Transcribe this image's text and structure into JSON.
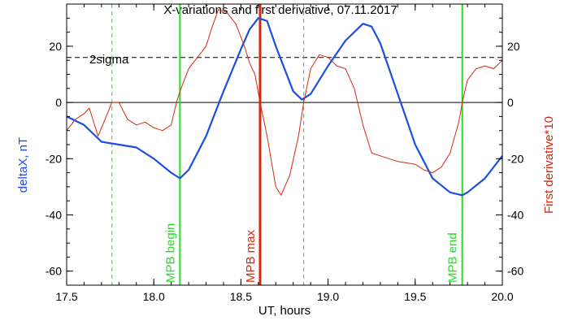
{
  "chart_data": {
    "type": "line",
    "title": "X-variations and first derivative, 07.11.2017",
    "xlabel": "UT, hours",
    "ylabel_left": "deltaX, nT",
    "ylabel_right": "First derivative*10",
    "xlim": [
      17.5,
      20.0
    ],
    "ylim": [
      -65,
      35
    ],
    "x_ticks": [
      "17.5",
      "18.0",
      "18.5",
      "19.0",
      "19.5",
      "20.0"
    ],
    "x_tick_values": [
      17.5,
      18.0,
      18.5,
      19.0,
      19.5,
      20.0
    ],
    "y_ticks": [
      "20",
      "0",
      "-20",
      "-40",
      "-60"
    ],
    "y_tick_values": [
      20,
      0,
      -20,
      -40,
      -60
    ],
    "grid": false,
    "colors": {
      "deltaX": "#1c4fe0",
      "derivative": "#d42a10",
      "mpb": "#22dd22",
      "mpb_max": "#d42a10",
      "reference": "#000000"
    },
    "sigma_label": "2sigma",
    "sigma_level": 16,
    "zero_level": 0,
    "vertical_lines": [
      {
        "label": "",
        "x": 17.76,
        "style": "dashed",
        "color": "#22dd22"
      },
      {
        "label": "MPB begin",
        "x": 18.15,
        "style": "solid",
        "color": "#22dd22"
      },
      {
        "label": "MPB max",
        "x": 18.61,
        "style": "solid",
        "color": "#d42a10"
      },
      {
        "label": "",
        "x": 18.86,
        "style": "dashed",
        "color": "#22dd22"
      },
      {
        "label": "MPB end",
        "x": 19.77,
        "style": "solid",
        "color": "#22dd22"
      }
    ],
    "series": [
      {
        "key": "deltaX",
        "axis": "left",
        "x": [
          17.5,
          17.6,
          17.7,
          17.8,
          17.9,
          18.0,
          18.1,
          18.15,
          18.2,
          18.3,
          18.4,
          18.5,
          18.55,
          18.6,
          18.65,
          18.7,
          18.8,
          18.85,
          18.9,
          19.0,
          19.1,
          19.2,
          19.25,
          19.3,
          19.4,
          19.5,
          19.6,
          19.7,
          19.77,
          19.8,
          19.9,
          20.0
        ],
        "values": [
          -5,
          -8,
          -14,
          -15,
          -16,
          -20,
          -25,
          -27,
          -24,
          -12,
          4,
          19,
          26,
          30,
          29,
          20,
          4,
          1,
          3,
          13,
          22,
          28,
          27,
          21,
          3,
          -15,
          -27,
          -32,
          -33,
          -32,
          -27,
          -19
        ]
      },
      {
        "key": "derivative",
        "axis": "right",
        "x": [
          17.5,
          17.55,
          17.6,
          17.63,
          17.68,
          17.72,
          17.76,
          17.8,
          17.85,
          17.9,
          17.95,
          18.0,
          18.05,
          18.1,
          18.13,
          18.15,
          18.2,
          18.25,
          18.3,
          18.33,
          18.37,
          18.42,
          18.47,
          18.52,
          18.55,
          18.58,
          18.61,
          18.65,
          18.7,
          18.73,
          18.78,
          18.83,
          18.86,
          18.9,
          18.95,
          19.0,
          19.05,
          19.1,
          19.15,
          19.2,
          19.25,
          19.3,
          19.35,
          19.4,
          19.5,
          19.55,
          19.6,
          19.65,
          19.7,
          19.75,
          19.77,
          19.8,
          19.85,
          19.9,
          19.95,
          20.0
        ],
        "values": [
          -10,
          -6,
          -4,
          -2,
          -12,
          -6,
          0,
          0,
          -6,
          -8,
          -7,
          -9,
          -10,
          -8,
          0,
          4,
          12,
          16,
          20,
          26,
          33,
          32,
          28,
          20,
          14,
          10,
          0,
          -12,
          -30,
          -33,
          -26,
          -12,
          0,
          12,
          17,
          16,
          13,
          12,
          5,
          -8,
          -18,
          -19,
          -20,
          -21,
          -22,
          -24,
          -25,
          -23,
          -18,
          -7,
          0,
          8,
          12,
          13,
          12,
          15
        ]
      }
    ]
  }
}
